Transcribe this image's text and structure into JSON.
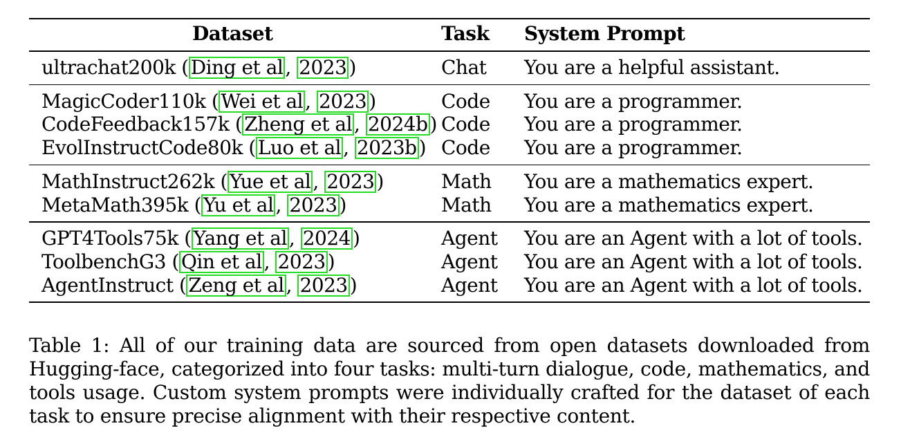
{
  "table": {
    "headers": {
      "dataset": "Dataset",
      "task": "Task",
      "prompt": "System Prompt"
    },
    "groups": [
      {
        "rows": [
          {
            "name": "ultrachat200k",
            "cite_author": "Ding et al",
            "cite_year": "2023",
            "task": "Chat",
            "prompt": "You are a helpful assistant."
          }
        ]
      },
      {
        "rows": [
          {
            "name": "MagicCoder110k",
            "cite_author": "Wei et al",
            "cite_year": "2023",
            "task": "Code",
            "prompt": "You are a programmer."
          },
          {
            "name": "CodeFeedback157k",
            "cite_author": "Zheng et al",
            "cite_year": "2024b",
            "task": "Code",
            "prompt": "You are a programmer."
          },
          {
            "name": "EvolInstructCode80k",
            "cite_author": "Luo et al",
            "cite_year": "2023b",
            "task": "Code",
            "prompt": "You are a programmer."
          }
        ]
      },
      {
        "rows": [
          {
            "name": "MathInstruct262k",
            "cite_author": "Yue et al",
            "cite_year": "2023",
            "task": "Math",
            "prompt": "You are a mathematics expert."
          },
          {
            "name": "MetaMath395k",
            "cite_author": "Yu et al",
            "cite_year": "2023",
            "task": "Math",
            "prompt": "You are a mathematics expert."
          }
        ]
      },
      {
        "rows": [
          {
            "name": "GPT4Tools75k",
            "cite_author": "Yang et al",
            "cite_year": "2024",
            "task": "Agent",
            "prompt": "You are an Agent with a lot of tools."
          },
          {
            "name": "ToolbenchG3",
            "cite_author": "Qin et al",
            "cite_year": "2023",
            "task": "Agent",
            "prompt": "You are an Agent with a lot of tools."
          },
          {
            "name": "AgentInstruct",
            "cite_author": "Zeng et al",
            "cite_year": "2023",
            "task": "Agent",
            "prompt": "You are an Agent with a lot of tools."
          }
        ]
      }
    ]
  },
  "caption": "Table 1: All of our training data are sourced from open datasets downloaded from Hugging-face, categorized into four tasks: multi-turn dialogue, code, mathematics, and tools usage. Custom system prompts were individually crafted for the dataset of each task to ensure precise alignment with their respective content.",
  "colors": {
    "citation_box": "#22dd22"
  }
}
